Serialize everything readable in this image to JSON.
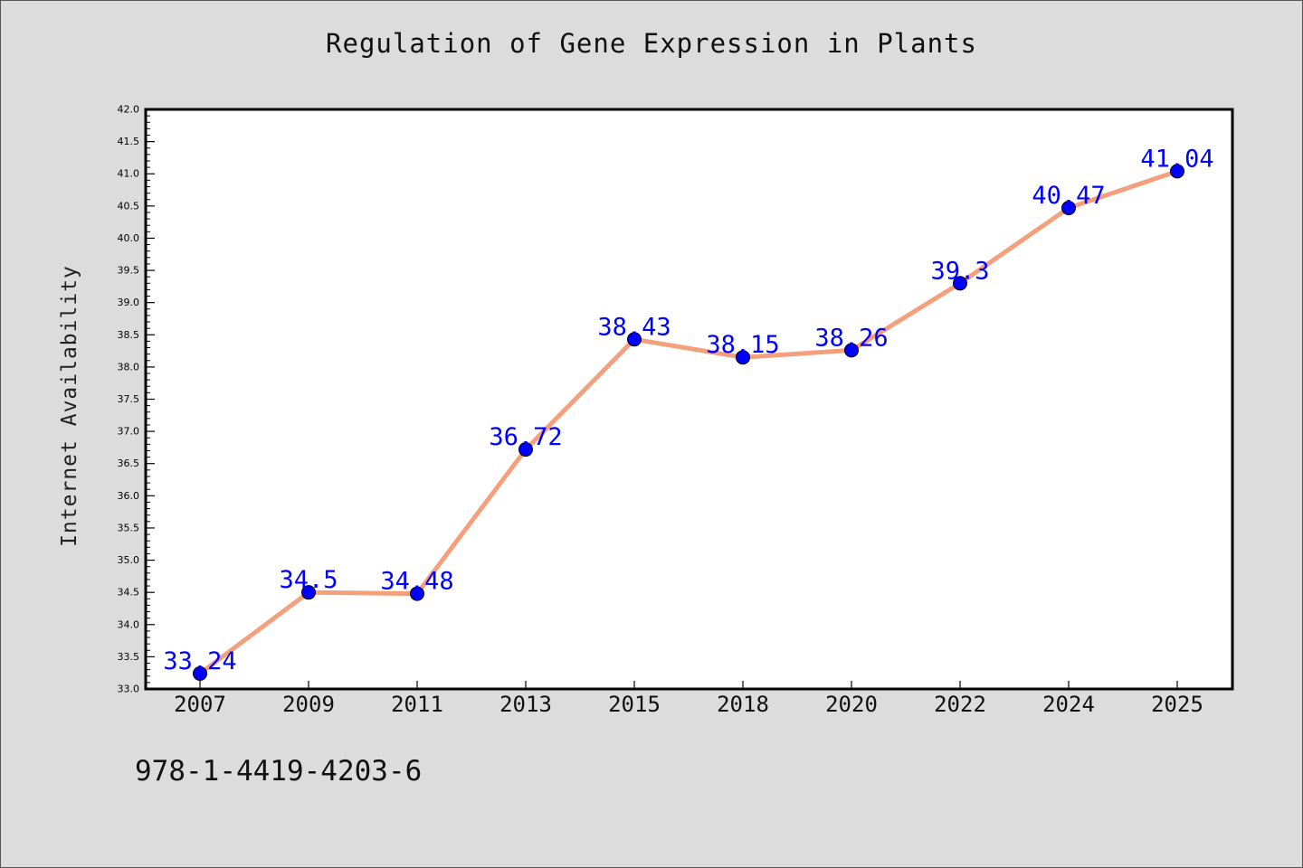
{
  "chart_data": {
    "type": "line",
    "title": "Regulation of Gene Expression in Plants",
    "xlabel": "",
    "ylabel": "Internet Availability",
    "categories": [
      "2007",
      "2009",
      "2011",
      "2013",
      "2015",
      "2018",
      "2020",
      "2022",
      "2024",
      "2025"
    ],
    "values": [
      33.24,
      34.5,
      34.48,
      36.72,
      38.43,
      38.15,
      38.26,
      39.3,
      40.47,
      41.04
    ],
    "data_labels": [
      "33.24",
      "34.5",
      "34.48",
      "36.72",
      "38.43",
      "38.15",
      "38.26",
      "39.3",
      "40.47",
      "41.04"
    ],
    "ylim": [
      33.0,
      42.0
    ],
    "y_ticks": [
      "33.0",
      "33.5",
      "34.0",
      "34.5",
      "35.0",
      "35.5",
      "36.0",
      "36.5",
      "37.0",
      "37.5",
      "38.0",
      "38.5",
      "39.0",
      "39.5",
      "40.0",
      "40.5",
      "41.0",
      "41.5",
      "42.0"
    ],
    "grid": false,
    "legend": "none",
    "colors": {
      "line": "#f4a07c",
      "marker": "#0000ff",
      "data_label": "#0000ff",
      "plot_background": "#ffffff",
      "figure_background": "#dcdcdc"
    }
  },
  "footer": {
    "code": "978-1-4419-4203-6"
  }
}
